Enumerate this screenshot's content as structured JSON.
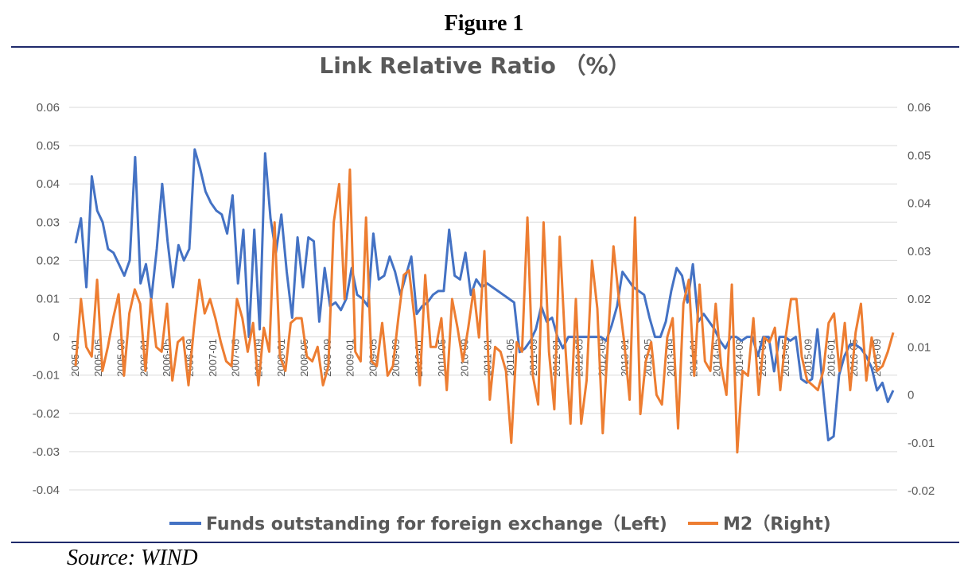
{
  "figure_label": "Figure 1",
  "source_note": "Source: WIND",
  "chart_data": {
    "type": "line",
    "title": "Link Relative Ratio （%）",
    "y_left": {
      "min": -0.04,
      "max": 0.06,
      "ticks": [
        "0.06",
        "0.05",
        "0.04",
        "0.03",
        "0.02",
        "0.01",
        "0",
        "-0.01",
        "-0.02",
        "-0.03",
        "-0.04"
      ]
    },
    "y_right": {
      "min": -0.02,
      "max": 0.06,
      "ticks": [
        "0.06",
        "0.05",
        "0.04",
        "0.03",
        "0.02",
        "0.01",
        "0",
        "-0.01",
        "-0.02"
      ]
    },
    "x_labels": [
      "2005-01",
      "2005-05",
      "2005-09",
      "2006-01",
      "2006-05",
      "2006-09",
      "2007-01",
      "2007-05",
      "2007-09",
      "2008-01",
      "2008-05",
      "2008-09",
      "2009-01",
      "2009-05",
      "2009-09",
      "2010-01",
      "2010-05",
      "2010-09",
      "2011-01",
      "2011-05",
      "2011-09",
      "2012-01",
      "2012-05",
      "2012-09",
      "2013-01",
      "2013-05",
      "2013-09",
      "2014-01",
      "2014-05",
      "2014-09",
      "2015-01",
      "2015-05",
      "2015-09",
      "2016-01",
      "2016-05",
      "2016-09"
    ],
    "legend_position": "bottom",
    "series": [
      {
        "name": "Funds outstanding for foreign exchange（Left)",
        "axis": "left",
        "color": "#4472c4",
        "values": [
          0.0245,
          0.031,
          0.013,
          0.042,
          0.033,
          0.03,
          0.023,
          0.022,
          0.019,
          0.016,
          0.02,
          0.047,
          0.014,
          0.019,
          0.01,
          0.023,
          0.04,
          0.025,
          0.013,
          0.024,
          0.02,
          0.023,
          0.049,
          0.044,
          0.038,
          0.035,
          0.033,
          0.032,
          0.027,
          0.037,
          0.014,
          0.028,
          0.0,
          0.028,
          0.002,
          0.048,
          0.031,
          0.022,
          0.032,
          0.017,
          0.005,
          0.026,
          0.013,
          0.026,
          0.025,
          0.004,
          0.018,
          0.008,
          0.009,
          0.007,
          0.01,
          0.018,
          0.011,
          0.01,
          0.008,
          0.027,
          0.015,
          0.016,
          0.021,
          0.017,
          0.011,
          0.016,
          0.021,
          0.006,
          0.008,
          0.009,
          0.011,
          0.012,
          0.012,
          0.028,
          0.016,
          0.015,
          0.022,
          0.011,
          0.015,
          0.013,
          0.014,
          0.013,
          0.012,
          0.011,
          0.01,
          0.009,
          -0.004,
          -0.003,
          -0.001,
          0.002,
          0.008,
          0.004,
          0.005,
          0.0,
          -0.003,
          0.0,
          0.0,
          0.0,
          0.0,
          0.0,
          0.0,
          0.0,
          -0.001,
          0.003,
          0.008,
          0.017,
          0.015,
          0.013,
          0.012,
          0.011,
          0.005,
          0.0,
          0.0,
          0.004,
          0.012,
          0.018,
          0.016,
          0.009,
          0.019,
          0.004,
          0.006,
          0.004,
          0.002,
          -0.001,
          -0.003,
          0.0,
          0.0,
          -0.001,
          0.0,
          0.0,
          -0.005,
          0.0,
          0.0,
          -0.009,
          0.0,
          0.0,
          -0.001,
          0.0,
          -0.011,
          -0.012,
          -0.011,
          0.002,
          -0.013,
          -0.027,
          -0.026,
          -0.01,
          -0.005,
          -0.002,
          -0.002,
          -0.003,
          -0.005,
          -0.008,
          -0.014,
          -0.012,
          -0.017,
          -0.014
        ]
      },
      {
        "name": "M2（Right)",
        "axis": "right",
        "color": "#ed7d31",
        "values": [
          0.006,
          0.02,
          0.01,
          0.008,
          0.024,
          0.005,
          0.01,
          0.016,
          0.021,
          0.004,
          0.017,
          0.022,
          0.019,
          0.005,
          0.02,
          0.01,
          0.009,
          0.019,
          0.003,
          0.011,
          0.012,
          0.002,
          0.014,
          0.024,
          0.017,
          0.02,
          0.016,
          0.011,
          0.007,
          0.006,
          0.02,
          0.016,
          0.009,
          0.015,
          0.002,
          0.014,
          0.009,
          0.036,
          0.008,
          0.005,
          0.015,
          0.016,
          0.016,
          0.008,
          0.007,
          0.01,
          0.002,
          0.006,
          0.036,
          0.044,
          0.02,
          0.047,
          0.009,
          0.007,
          0.037,
          0.007,
          0.006,
          0.015,
          0.004,
          0.006,
          0.016,
          0.025,
          0.026,
          0.016,
          0.002,
          0.025,
          0.01,
          0.01,
          0.016,
          0.001,
          0.02,
          0.014,
          0.007,
          0.014,
          0.022,
          0.012,
          0.03,
          -0.001,
          0.01,
          0.009,
          0.005,
          -0.01,
          0.011,
          0.009,
          0.037,
          0.004,
          -0.002,
          0.036,
          0.009,
          -0.003,
          0.033,
          0.011,
          -0.006,
          0.02,
          -0.006,
          0.003,
          0.028,
          0.018,
          -0.008,
          0.012,
          0.031,
          0.02,
          0.011,
          -0.001,
          0.037,
          -0.004,
          0.007,
          0.011,
          0.0,
          -0.002,
          0.012,
          0.016,
          -0.007,
          0.019,
          0.024,
          0.004,
          0.023,
          0.007,
          0.005,
          0.019,
          0.006,
          0.0,
          0.023,
          -0.012,
          0.005,
          0.004,
          0.016,
          0.0,
          0.012,
          0.011,
          0.014,
          0.001,
          0.012,
          0.02,
          0.02,
          0.008,
          0.003,
          0.002,
          0.001,
          0.005,
          0.015,
          0.017,
          0.005,
          0.015,
          0.001,
          0.013,
          0.019,
          0.003,
          0.012,
          0.005,
          0.006,
          0.009,
          0.013
        ]
      }
    ]
  }
}
